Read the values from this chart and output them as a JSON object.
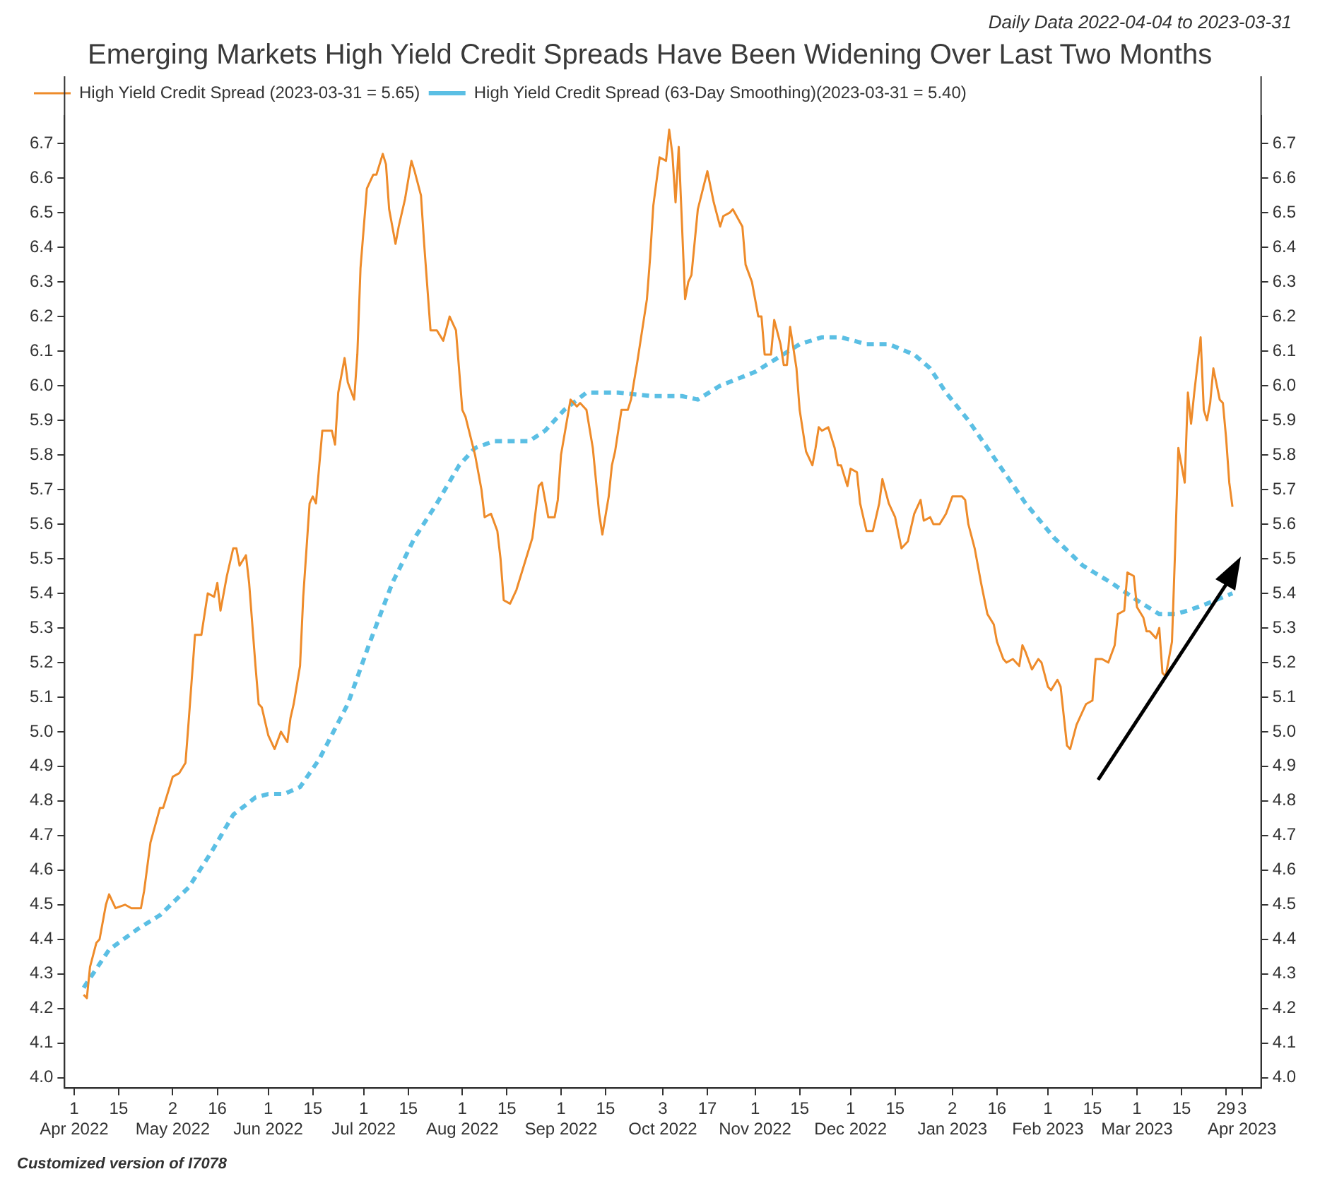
{
  "chart_data": {
    "type": "line",
    "title": "Emerging Markets High Yield Credit Spreads Have Been Widening Over Last Two Months",
    "subtitle": "Daily Data 2022-04-04 to 2023-03-31",
    "annotations": [
      "Customized version of I7078"
    ],
    "series": [
      {
        "name": "High Yield Credit Spread (2023-03-31 = 5.65)",
        "color": "#ee8b2a",
        "line_style": "solid",
        "x": [
          "2022-04-04",
          "2022-04-05",
          "2022-04-06",
          "2022-04-08",
          "2022-04-09",
          "2022-04-11",
          "2022-04-12",
          "2022-04-14",
          "2022-04-17",
          "2022-04-19",
          "2022-04-22",
          "2022-04-23",
          "2022-04-25",
          "2022-04-28",
          "2022-04-29",
          "2022-05-02",
          "2022-05-04",
          "2022-05-06",
          "2022-05-07",
          "2022-05-09",
          "2022-05-11",
          "2022-05-13",
          "2022-05-15",
          "2022-05-16",
          "2022-05-17",
          "2022-05-19",
          "2022-05-21",
          "2022-05-22",
          "2022-05-23",
          "2022-05-25",
          "2022-05-26",
          "2022-05-28",
          "2022-05-29",
          "2022-05-30",
          "2022-06-01",
          "2022-06-03",
          "2022-06-05",
          "2022-06-07",
          "2022-06-08",
          "2022-06-09",
          "2022-06-11",
          "2022-06-12",
          "2022-06-14",
          "2022-06-15",
          "2022-06-16",
          "2022-06-18",
          "2022-06-21",
          "2022-06-22",
          "2022-06-23",
          "2022-06-25",
          "2022-06-26",
          "2022-06-28",
          "2022-06-29",
          "2022-06-30",
          "2022-07-02",
          "2022-07-04",
          "2022-07-05",
          "2022-07-07",
          "2022-07-08",
          "2022-07-09",
          "2022-07-11",
          "2022-07-12",
          "2022-07-14",
          "2022-07-16",
          "2022-07-17",
          "2022-07-19",
          "2022-07-20",
          "2022-07-22",
          "2022-07-24",
          "2022-07-26",
          "2022-07-28",
          "2022-07-30",
          "2022-08-01",
          "2022-08-02",
          "2022-08-05",
          "2022-08-07",
          "2022-08-08",
          "2022-08-10",
          "2022-08-12",
          "2022-08-13",
          "2022-08-14",
          "2022-08-16",
          "2022-08-18",
          "2022-08-21",
          "2022-08-23",
          "2022-08-25",
          "2022-08-26",
          "2022-08-28",
          "2022-08-30",
          "2022-08-31",
          "2022-09-01",
          "2022-09-04",
          "2022-09-06",
          "2022-09-07",
          "2022-09-09",
          "2022-09-11",
          "2022-09-13",
          "2022-09-14",
          "2022-09-16",
          "2022-09-17",
          "2022-09-18",
          "2022-09-20",
          "2022-09-22",
          "2022-09-23",
          "2022-09-25",
          "2022-09-28",
          "2022-09-29",
          "2022-09-30",
          "2022-10-02",
          "2022-10-04",
          "2022-10-05",
          "2022-10-06",
          "2022-10-07",
          "2022-10-08",
          "2022-10-10",
          "2022-10-11",
          "2022-10-12",
          "2022-10-14",
          "2022-10-17",
          "2022-10-19",
          "2022-10-21",
          "2022-10-22",
          "2022-10-24",
          "2022-10-25",
          "2022-10-28",
          "2022-10-29",
          "2022-10-31",
          "2022-11-02",
          "2022-11-03",
          "2022-11-04",
          "2022-11-06",
          "2022-11-07",
          "2022-11-09",
          "2022-11-10",
          "2022-11-11",
          "2022-11-12",
          "2022-11-14",
          "2022-11-15",
          "2022-11-17",
          "2022-11-19",
          "2022-11-20",
          "2022-11-21",
          "2022-11-22",
          "2022-11-24",
          "2022-11-26",
          "2022-11-27",
          "2022-11-28",
          "2022-11-30",
          "2022-12-01",
          "2022-12-03",
          "2022-12-04",
          "2022-12-06",
          "2022-12-08",
          "2022-12-10",
          "2022-12-11",
          "2022-12-13",
          "2022-12-15",
          "2022-12-17",
          "2022-12-19",
          "2022-12-21",
          "2022-12-23",
          "2022-12-24",
          "2022-12-26",
          "2022-12-27",
          "2022-12-29",
          "2022-12-31",
          "2023-01-02",
          "2023-01-05",
          "2023-01-06",
          "2023-01-07",
          "2023-01-09",
          "2023-01-11",
          "2023-01-13",
          "2023-01-15",
          "2023-01-16",
          "2023-01-18",
          "2023-01-19",
          "2023-01-21",
          "2023-01-23",
          "2023-01-24",
          "2023-01-25",
          "2023-01-27",
          "2023-01-29",
          "2023-01-30",
          "2023-02-01",
          "2023-02-02",
          "2023-02-04",
          "2023-02-05",
          "2023-02-07",
          "2023-02-08",
          "2023-02-10",
          "2023-02-12",
          "2023-02-13",
          "2023-02-15",
          "2023-02-16",
          "2023-02-18",
          "2023-02-20",
          "2023-02-22",
          "2023-02-23",
          "2023-02-25",
          "2023-02-26",
          "2023-02-28",
          "2023-03-01",
          "2023-03-03",
          "2023-03-04",
          "2023-03-05",
          "2023-03-07",
          "2023-03-08",
          "2023-03-09",
          "2023-03-10",
          "2023-03-12",
          "2023-03-13",
          "2023-03-14",
          "2023-03-16",
          "2023-03-17",
          "2023-03-18",
          "2023-03-19",
          "2023-03-21",
          "2023-03-22",
          "2023-03-23",
          "2023-03-24",
          "2023-03-25",
          "2023-03-27",
          "2023-03-28",
          "2023-03-29",
          "2023-03-30",
          "2023-03-31"
        ],
        "values": [
          4.24,
          4.23,
          4.32,
          4.39,
          4.4,
          4.5,
          4.53,
          4.49,
          4.5,
          4.49,
          4.49,
          4.54,
          4.68,
          4.78,
          4.78,
          4.87,
          4.88,
          4.91,
          5.03,
          5.28,
          5.28,
          5.4,
          5.39,
          5.43,
          5.35,
          5.45,
          5.53,
          5.53,
          5.48,
          5.51,
          5.43,
          5.19,
          5.08,
          5.07,
          4.99,
          4.95,
          5.0,
          4.97,
          5.04,
          5.08,
          5.19,
          5.39,
          5.66,
          5.68,
          5.66,
          5.87,
          5.87,
          5.83,
          5.98,
          6.08,
          6.01,
          5.96,
          6.09,
          6.34,
          6.57,
          6.61,
          6.61,
          6.67,
          6.64,
          6.51,
          6.41,
          6.46,
          6.54,
          6.65,
          6.62,
          6.55,
          6.41,
          6.16,
          6.16,
          6.13,
          6.2,
          6.16,
          5.93,
          5.91,
          5.8,
          5.7,
          5.62,
          5.63,
          5.58,
          5.5,
          5.38,
          5.37,
          5.41,
          5.5,
          5.56,
          5.71,
          5.72,
          5.62,
          5.62,
          5.67,
          5.8,
          5.96,
          5.94,
          5.95,
          5.93,
          5.82,
          5.63,
          5.57,
          5.68,
          5.77,
          5.81,
          5.93,
          5.93,
          5.96,
          6.07,
          6.25,
          6.37,
          6.52,
          6.66,
          6.65,
          6.74,
          6.67,
          6.53,
          6.69,
          6.25,
          6.3,
          6.32,
          6.51,
          6.62,
          6.53,
          6.46,
          6.49,
          6.5,
          6.51,
          6.46,
          6.35,
          6.3,
          6.2,
          6.2,
          6.09,
          6.09,
          6.19,
          6.12,
          6.06,
          6.06,
          6.17,
          6.05,
          5.93,
          5.81,
          5.77,
          5.82,
          5.88,
          5.87,
          5.88,
          5.82,
          5.77,
          5.77,
          5.71,
          5.76,
          5.75,
          5.66,
          5.58,
          5.58,
          5.66,
          5.73,
          5.66,
          5.62,
          5.53,
          5.55,
          5.63,
          5.67,
          5.61,
          5.62,
          5.6,
          5.6,
          5.63,
          5.68,
          5.68,
          5.67,
          5.6,
          5.53,
          5.43,
          5.34,
          5.31,
          5.26,
          5.21,
          5.2,
          5.21,
          5.19,
          5.25,
          5.23,
          5.18,
          5.21,
          5.2,
          5.13,
          5.12,
          5.15,
          5.13,
          4.96,
          4.95,
          5.02,
          5.06,
          5.08,
          5.09,
          5.21,
          5.21,
          5.2,
          5.25,
          5.34,
          5.35,
          5.46,
          5.45,
          5.36,
          5.33,
          5.29,
          5.29,
          5.27,
          5.3,
          5.17,
          5.16,
          5.26,
          5.53,
          5.82,
          5.72,
          5.98,
          5.89,
          5.98,
          6.14,
          5.93,
          5.9,
          5.95,
          6.05,
          5.96,
          5.95,
          5.85,
          5.72,
          5.65
        ]
      },
      {
        "name": "High Yield Credit Spread (63-Day Smoothing)(2023-03-31 = 5.40)",
        "color": "#5bbfe4",
        "line_style": "dashed",
        "x": [
          "2022-04-04",
          "2022-04-12",
          "2022-04-21",
          "2022-04-28",
          "2022-05-07",
          "2022-05-14",
          "2022-05-21",
          "2022-05-28",
          "2022-06-01",
          "2022-06-06",
          "2022-06-11",
          "2022-06-17",
          "2022-06-26",
          "2022-07-03",
          "2022-07-10",
          "2022-07-17",
          "2022-07-24",
          "2022-07-31",
          "2022-08-05",
          "2022-08-11",
          "2022-08-22",
          "2022-08-27",
          "2022-09-02",
          "2022-09-09",
          "2022-09-19",
          "2022-09-30",
          "2022-10-09",
          "2022-10-14",
          "2022-10-21",
          "2022-11-01",
          "2022-11-08",
          "2022-11-15",
          "2022-11-22",
          "2022-11-28",
          "2022-12-06",
          "2022-12-13",
          "2022-12-21",
          "2022-12-26",
          "2022-12-31",
          "2023-01-07",
          "2023-01-16",
          "2023-01-25",
          "2023-02-03",
          "2023-02-12",
          "2023-02-21",
          "2023-03-01",
          "2023-03-08",
          "2023-03-13",
          "2023-03-17",
          "2023-03-23",
          "2023-03-31"
        ],
        "values": [
          4.26,
          4.37,
          4.43,
          4.47,
          4.55,
          4.65,
          4.76,
          4.81,
          4.82,
          4.82,
          4.84,
          4.92,
          5.08,
          5.26,
          5.43,
          5.56,
          5.66,
          5.77,
          5.82,
          5.84,
          5.84,
          5.87,
          5.93,
          5.98,
          5.98,
          5.97,
          5.97,
          5.96,
          6.0,
          6.04,
          6.08,
          6.12,
          6.14,
          6.14,
          6.12,
          6.12,
          6.09,
          6.05,
          5.98,
          5.9,
          5.78,
          5.66,
          5.56,
          5.48,
          5.43,
          5.38,
          5.34,
          5.34,
          5.35,
          5.37,
          5.4
        ]
      }
    ],
    "xlim": [
      "2022-03-29",
      "2023-04-09"
    ],
    "xticks": [
      {
        "value": "2022-04-01",
        "label": "1\nApr 2022"
      },
      {
        "value": "2022-04-15",
        "label": "15"
      },
      {
        "value": "2022-05-02",
        "label": "2\nMay 2022"
      },
      {
        "value": "2022-05-16",
        "label": "16"
      },
      {
        "value": "2022-06-01",
        "label": "1\nJun 2022"
      },
      {
        "value": "2022-06-15",
        "label": "15"
      },
      {
        "value": "2022-07-01",
        "label": "1\nJul 2022"
      },
      {
        "value": "2022-07-15",
        "label": "15"
      },
      {
        "value": "2022-08-01",
        "label": "1\nAug 2022"
      },
      {
        "value": "2022-08-15",
        "label": "15"
      },
      {
        "value": "2022-09-01",
        "label": "1\nSep 2022"
      },
      {
        "value": "2022-09-15",
        "label": "15"
      },
      {
        "value": "2022-10-03",
        "label": "3\nOct 2022"
      },
      {
        "value": "2022-10-17",
        "label": "17"
      },
      {
        "value": "2022-11-01",
        "label": "1\nNov 2022"
      },
      {
        "value": "2022-11-15",
        "label": "15"
      },
      {
        "value": "2022-12-01",
        "label": "1\nDec 2022"
      },
      {
        "value": "2022-12-15",
        "label": "15"
      },
      {
        "value": "2023-01-02",
        "label": "2\nJan 2023"
      },
      {
        "value": "2023-01-16",
        "label": "16"
      },
      {
        "value": "2023-02-01",
        "label": "1\nFeb 2023"
      },
      {
        "value": "2023-02-15",
        "label": "15"
      },
      {
        "value": "2023-03-01",
        "label": "1\nMar 2023"
      },
      {
        "value": "2023-03-15",
        "label": "15"
      },
      {
        "value": "2023-03-29",
        "label": "29"
      },
      {
        "value": "2023-04-03",
        "label": "3\nApr 2023"
      }
    ],
    "ylim": [
      3.97,
      6.78
    ],
    "yticks": [
      {
        "value": 4,
        "label": "4.0"
      },
      4.1,
      4.2,
      4.3,
      4.4,
      4.5,
      4.6,
      4.7,
      4.8,
      4.9,
      {
        "value": 5,
        "label": "5.0"
      },
      5.1,
      5.2,
      5.3,
      5.4,
      5.5,
      5.6,
      5.7,
      5.8,
      5.9,
      {
        "value": 6,
        "label": "6.0"
      },
      6.1,
      6.2,
      6.3,
      6.4,
      6.5,
      6.6,
      6.7
    ],
    "y2lim": [
      3.97,
      6.78
    ],
    "y2ticks": [
      {
        "value": 4,
        "label": "4.0"
      },
      4.1,
      4.2,
      4.3,
      4.4,
      4.5,
      4.6,
      4.7,
      4.8,
      4.9,
      {
        "value": 5,
        "label": "5.0"
      },
      5.1,
      5.2,
      5.3,
      5.4,
      5.5,
      5.6,
      5.7,
      5.8,
      5.9,
      {
        "value": 6,
        "label": "6.0"
      },
      6.1,
      6.2,
      6.3,
      6.4,
      6.5,
      6.6,
      6.7
    ],
    "grid": false,
    "legend": "top left",
    "marker": "none"
  }
}
